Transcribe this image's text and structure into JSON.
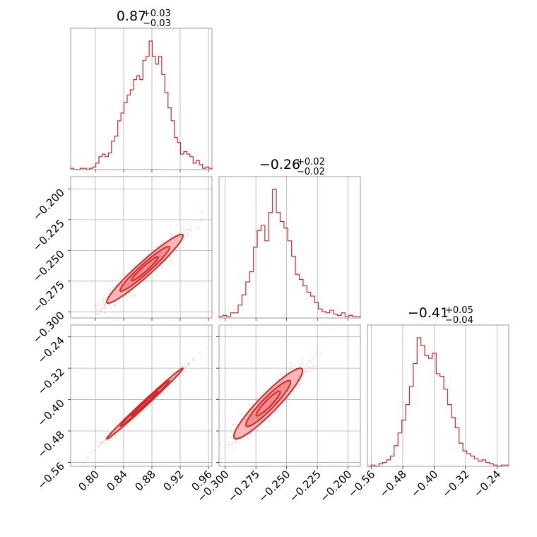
{
  "figure": {
    "colors": {
      "line": "#d62728",
      "fill_light": "#f7b8b8",
      "fill_mid": "#ef8f90",
      "points": "#f4a6a6"
    }
  },
  "chart_data": {
    "type": "corner",
    "parameters": [
      {
        "title": {
          "value": "0.87",
          "upper": "+0.03",
          "lower": "−0.03"
        },
        "range": [
          0.765,
          0.965
        ],
        "ticks": [
          0.8,
          0.84,
          0.88,
          0.92,
          0.96
        ],
        "tick_labels": [
          "0.80",
          "0.84",
          "0.88",
          "0.92",
          "0.96"
        ],
        "median": 0.87,
        "sigma": 0.027,
        "histogram": [
          1,
          0,
          0,
          1,
          1,
          0,
          1,
          2,
          5,
          10,
          12,
          10,
          13,
          22,
          26,
          38,
          44,
          52,
          58,
          62,
          70,
          73,
          70,
          85,
          88,
          100,
          88,
          82,
          88,
          74,
          60,
          48,
          38,
          25,
          21,
          12,
          14,
          12,
          10,
          5,
          7,
          4,
          1,
          2,
          1
        ]
      },
      {
        "title": {
          "value": "−0.26",
          "upper": "+0.02",
          "lower": "−0.02"
        },
        "range": [
          -0.305,
          -0.19
        ],
        "ticks": [
          -0.3,
          -0.275,
          -0.25,
          -0.225,
          -0.2
        ],
        "tick_labels": [
          "−0.300",
          "−0.275",
          "−0.250",
          "−0.225",
          "−0.200"
        ],
        "median": -0.265,
        "sigma": 0.014,
        "histogram": [
          1,
          2,
          1,
          4,
          4,
          10,
          18,
          28,
          36,
          55,
          68,
          72,
          60,
          82,
          100,
          82,
          75,
          70,
          60,
          48,
          34,
          30,
          25,
          20,
          17,
          12,
          7,
          5,
          4,
          6,
          3,
          2,
          4,
          1,
          2,
          1,
          1
        ]
      },
      {
        "title": {
          "value": "−0.41",
          "upper": "+0.05",
          "lower": "−0.04"
        },
        "range": [
          -0.57,
          -0.21
        ],
        "ticks": [
          -0.56,
          -0.48,
          -0.4,
          -0.32,
          -0.24
        ],
        "tick_labels": [
          "−0.56",
          "−0.48",
          "−0.40",
          "−0.32",
          "−0.24"
        ],
        "median": -0.41,
        "sigma": 0.045,
        "histogram": [
          0,
          1,
          0,
          2,
          3,
          5,
          8,
          16,
          26,
          36,
          48,
          62,
          80,
          100,
          94,
          86,
          84,
          88,
          72,
          70,
          60,
          48,
          38,
          30,
          18,
          12,
          10,
          8,
          6,
          4,
          5,
          3,
          2,
          1,
          0,
          1,
          1
        ]
      }
    ],
    "pairs": [
      {
        "x": 0,
        "y": 1,
        "correlation": 0.96,
        "n_points": 900
      },
      {
        "x": 0,
        "y": 2,
        "correlation": 0.995,
        "n_points": 900
      },
      {
        "x": 1,
        "y": 2,
        "correlation": 0.93,
        "n_points": 900
      }
    ]
  }
}
